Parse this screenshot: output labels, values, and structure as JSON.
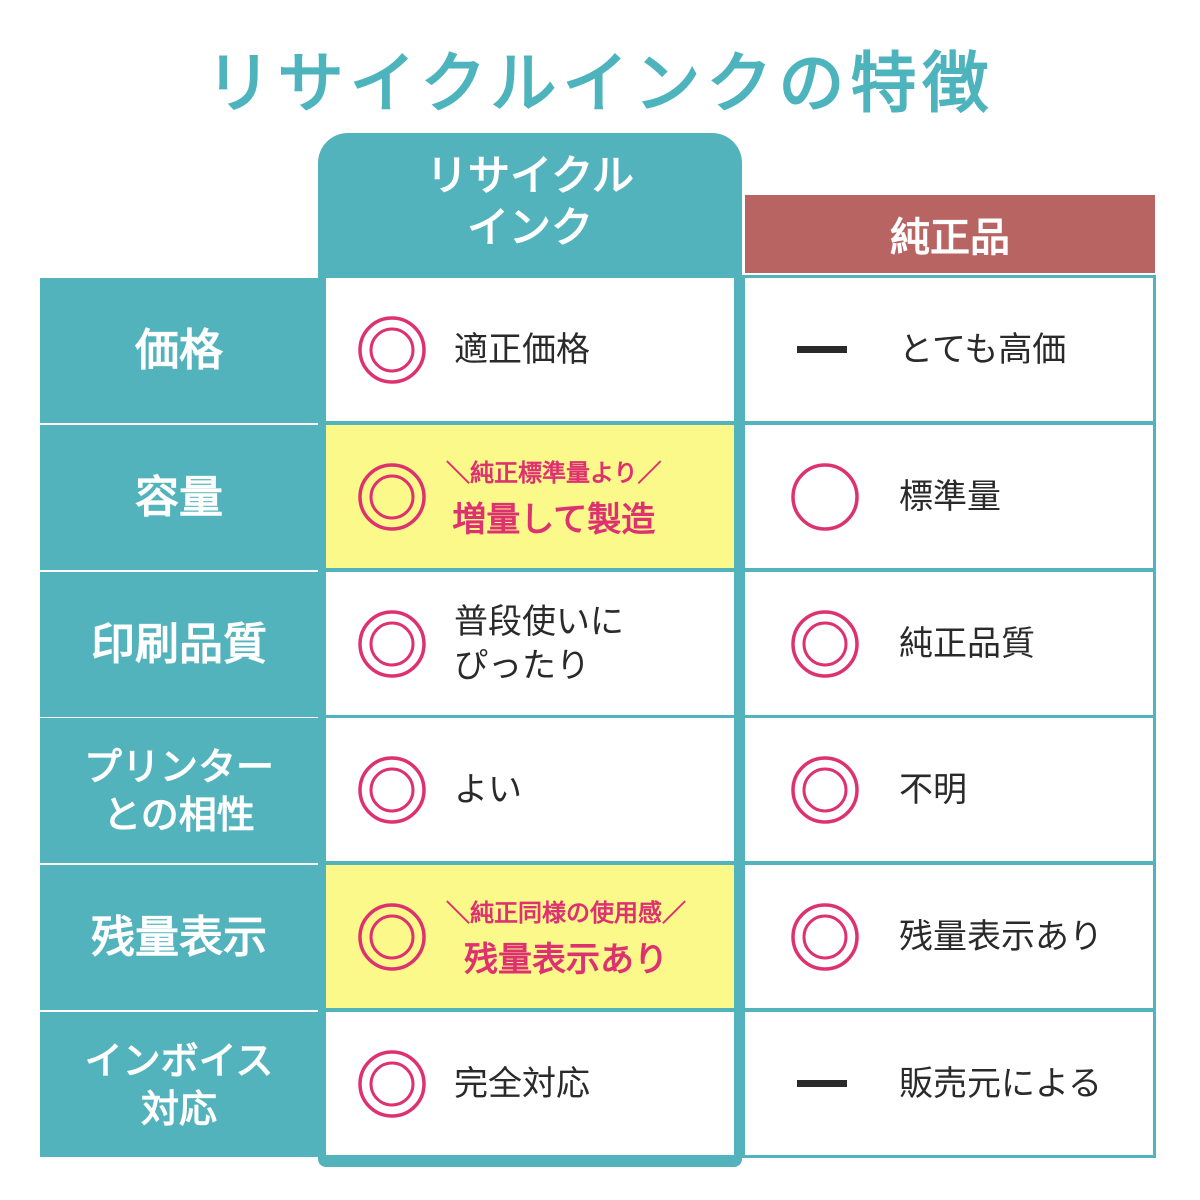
{
  "title": "リサイクルインクの特徴",
  "columns": {
    "recycle": [
      "リサイクル",
      "インク"
    ],
    "genuine": "純正品"
  },
  "colors": {
    "accent_teal": "#52b3bd",
    "genuine_header": "#b86462",
    "highlight": "#fbf98a",
    "pink": "#de3170"
  },
  "rows": [
    {
      "label": "価格",
      "recycle": {
        "symbol": "double-circle",
        "text": "適正価格"
      },
      "genuine": {
        "symbol": "dash",
        "text": "とても高価"
      }
    },
    {
      "label": "容量",
      "recycle": {
        "symbol": "double-circle",
        "highlight": true,
        "sub": "＼純正標準量より／",
        "main": "増量して製造"
      },
      "genuine": {
        "symbol": "circle",
        "text": "標準量"
      }
    },
    {
      "label": "印刷品質",
      "recycle": {
        "symbol": "double-circle",
        "text": "普段使いに\nぴったり"
      },
      "genuine": {
        "symbol": "double-circle",
        "text": "純正品質"
      }
    },
    {
      "label": "プリンター\nとの相性",
      "recycle": {
        "symbol": "double-circle",
        "text": "よい"
      },
      "genuine": {
        "symbol": "double-circle",
        "text": "不明"
      }
    },
    {
      "label": "残量表示",
      "recycle": {
        "symbol": "double-circle",
        "highlight": true,
        "sub": "＼純正同様の使用感／",
        "main": "残量表示あり"
      },
      "genuine": {
        "symbol": "double-circle",
        "text": "残量表示あり"
      }
    },
    {
      "label": "インボイス\n対応",
      "recycle": {
        "symbol": "double-circle",
        "text": "完全対応"
      },
      "genuine": {
        "symbol": "dash",
        "text": "販売元による"
      }
    }
  ]
}
